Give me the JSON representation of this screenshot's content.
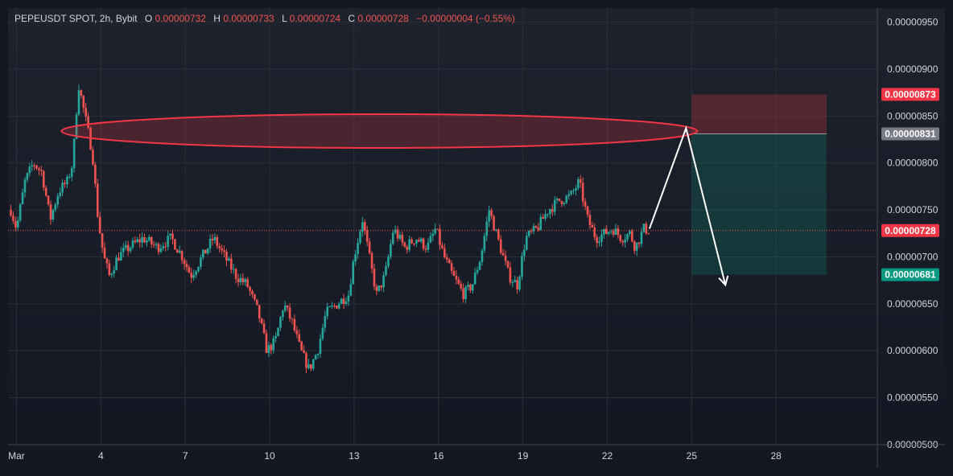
{
  "header": {
    "symbol": "PEPEUSDT SPOT, 2h, Bybit",
    "o_label": "O",
    "o_value": "0.00000732",
    "h_label": "H",
    "h_value": "0.00000733",
    "l_label": "L",
    "l_value": "0.00000724",
    "c_label": "C",
    "c_value": "0.00000728",
    "change": "−0.00000004 (−0.55%)"
  },
  "colors": {
    "up": "#26a69a",
    "down": "#ef5350",
    "stop_badge": "#f23645",
    "entry_badge": "#787b86",
    "current_badge": "#f23645",
    "target_badge": "#089981",
    "zone": "#f23645",
    "arrow": "#ffffff"
  },
  "chart_data": {
    "type": "candlestick",
    "symbol": "PEPEUSDT",
    "timeframe": "2h",
    "exchange": "Bybit",
    "ylim": [
      5e-06,
      9.65e-06
    ],
    "y_ticks": [
      "0.00000950",
      "0.00000900",
      "0.00000850",
      "0.00000800",
      "0.00000750",
      "0.00000700",
      "0.00000650",
      "0.00000600",
      "0.00000550",
      "0.00000500"
    ],
    "x_ticks": [
      "Mar",
      "4",
      "7",
      "10",
      "13",
      "16",
      "19",
      "22",
      "25",
      "28"
    ],
    "x_tick_days": [
      1,
      4,
      7,
      10,
      13,
      16,
      19,
      22,
      25,
      28
    ],
    "x_range_days": [
      0.7,
      31.6
    ],
    "price_path": [
      [
        0.8,
        7.5
      ],
      [
        1.0,
        7.3
      ],
      [
        1.3,
        7.8
      ],
      [
        1.6,
        8.0
      ],
      [
        1.9,
        7.9
      ],
      [
        2.2,
        7.4
      ],
      [
        2.5,
        7.7
      ],
      [
        2.8,
        7.8
      ],
      [
        3.0,
        8.0
      ],
      [
        3.2,
        8.85
      ],
      [
        3.5,
        8.4
      ],
      [
        3.7,
        8.1
      ],
      [
        3.9,
        7.4
      ],
      [
        4.1,
        7.0
      ],
      [
        4.3,
        6.8
      ],
      [
        4.6,
        7.0
      ],
      [
        5.0,
        7.1
      ],
      [
        5.5,
        7.2
      ],
      [
        6.0,
        7.1
      ],
      [
        6.5,
        7.2
      ],
      [
        6.9,
        7.0
      ],
      [
        7.2,
        6.8
      ],
      [
        7.6,
        7.0
      ],
      [
        8.0,
        7.2
      ],
      [
        8.4,
        7.0
      ],
      [
        8.8,
        6.8
      ],
      [
        9.2,
        6.7
      ],
      [
        9.6,
        6.4
      ],
      [
        9.9,
        6.0
      ],
      [
        10.2,
        6.1
      ],
      [
        10.5,
        6.5
      ],
      [
        10.8,
        6.3
      ],
      [
        11.1,
        6.0
      ],
      [
        11.4,
        5.8
      ],
      [
        11.7,
        6.0
      ],
      [
        12.0,
        6.4
      ],
      [
        12.4,
        6.5
      ],
      [
        12.8,
        6.6
      ],
      [
        13.0,
        7.0
      ],
      [
        13.3,
        7.4
      ],
      [
        13.6,
        6.9
      ],
      [
        13.8,
        6.6
      ],
      [
        14.1,
        6.8
      ],
      [
        14.4,
        7.3
      ],
      [
        14.8,
        7.1
      ],
      [
        15.2,
        7.2
      ],
      [
        15.6,
        7.1
      ],
      [
        15.9,
        7.3
      ],
      [
        16.2,
        7.0
      ],
      [
        16.5,
        6.8
      ],
      [
        16.9,
        6.6
      ],
      [
        17.2,
        6.7
      ],
      [
        17.5,
        7.0
      ],
      [
        17.8,
        7.5
      ],
      [
        18.2,
        7.1
      ],
      [
        18.5,
        6.8
      ],
      [
        18.8,
        6.7
      ],
      [
        19.1,
        7.2
      ],
      [
        19.5,
        7.3
      ],
      [
        19.9,
        7.5
      ],
      [
        20.3,
        7.6
      ],
      [
        20.7,
        7.65
      ],
      [
        21.0,
        7.8
      ],
      [
        21.3,
        7.4
      ],
      [
        21.6,
        7.2
      ],
      [
        21.9,
        7.25
      ],
      [
        22.2,
        7.3
      ],
      [
        22.5,
        7.2
      ],
      [
        22.8,
        7.25
      ],
      [
        23.0,
        7.1
      ],
      [
        23.3,
        7.3
      ],
      [
        23.5,
        7.28
      ]
    ],
    "annotations": {
      "resistance_ellipse": {
        "x_days": [
          2.6,
          25.2
        ],
        "y_center": 8.34e-06,
        "y_half_height": 1.8e-07
      },
      "short_position": {
        "x_days": [
          25.0,
          29.8
        ],
        "entry": 8.31e-06,
        "stop": 8.73e-06,
        "target": 6.81e-06
      },
      "projection_path": [
        [
          23.5,
          7.3e-06
        ],
        [
          24.8,
          8.37e-06
        ],
        [
          26.2,
          6.7e-06
        ]
      ]
    },
    "price_labels": {
      "stop": "0.00000873",
      "entry": "0.00000831",
      "current": "0.00000728",
      "target": "0.00000681"
    },
    "current_price": 7.28e-06
  }
}
